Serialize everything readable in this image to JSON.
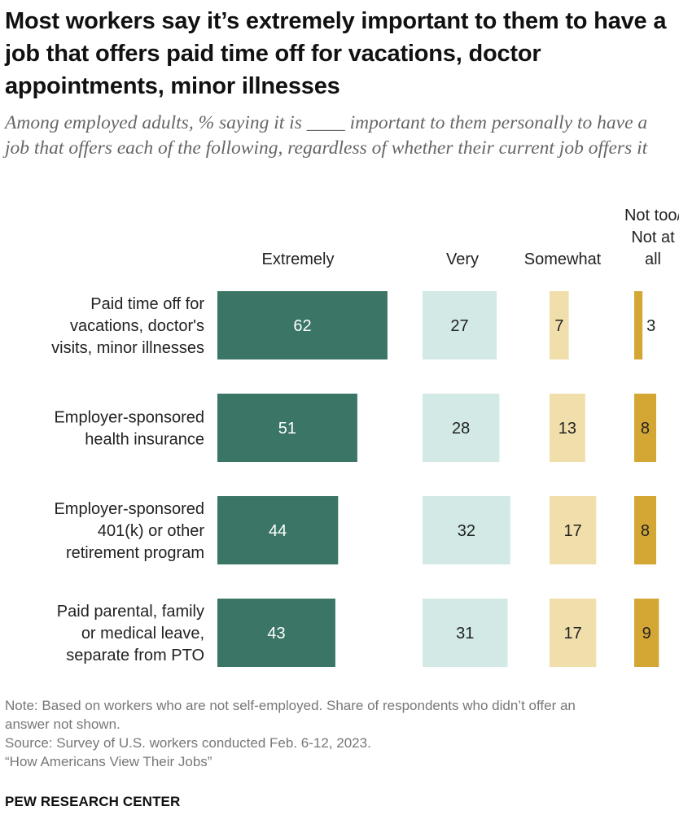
{
  "title": "Most workers say it’s extremely important to them to have a job that offers paid time off for vacations, doctor appointments, minor illnesses",
  "subtitle": "Among employed adults, % saying it is ____ important to them personally to have a job that offers each of the following, regardless of whether their current job offers it",
  "colors": {
    "extremely": "#3a7566",
    "very": "#d2e9e5",
    "somewhat": "#f1dfab",
    "not_too": "#d4a633",
    "label_light": "#ffffff",
    "label_dark": "#222222"
  },
  "chart_data": {
    "type": "bar",
    "orientation": "horizontal",
    "layout": "separate columns per series",
    "series": [
      {
        "name": "Extremely",
        "header_lines": [
          "Extremely"
        ],
        "values": [
          62,
          51,
          44,
          43
        ]
      },
      {
        "name": "Very",
        "header_lines": [
          "Very"
        ],
        "values": [
          27,
          28,
          32,
          31
        ]
      },
      {
        "name": "Somewhat",
        "header_lines": [
          "Somewhat"
        ],
        "values": [
          7,
          13,
          17,
          17
        ]
      },
      {
        "name": "Not too/ Not at all",
        "header_lines": [
          "Not too/",
          "Not at",
          "all"
        ],
        "values": [
          3,
          8,
          8,
          9
        ]
      }
    ],
    "categories": [
      {
        "name": "Paid time off for vacations, doctor's visits, minor illnesses",
        "lines": [
          "Paid time off for",
          "vacations, doctor's",
          "visits, minor illnesses"
        ]
      },
      {
        "name": "Employer-sponsored health insurance",
        "lines": [
          "Employer-sponsored",
          "health insurance"
        ]
      },
      {
        "name": "Employer-sponsored 401(k) or other retirement program",
        "lines": [
          "Employer-sponsored",
          "401(k) or other",
          "retirement program"
        ]
      },
      {
        "name": "Paid parental, family or medical leave, separate from PTO",
        "lines": [
          "Paid parental, family",
          "or medical leave,",
          "separate from PTO"
        ]
      }
    ]
  },
  "notes": [
    "Note: Based on workers who are not self-employed. Share of respondents who didn’t offer an",
    "answer not shown.",
    "Source: Survey of U.S. workers conducted Feb. 6-12, 2023.",
    "“How Americans View Their Jobs”"
  ],
  "brand": "PEW RESEARCH CENTER"
}
